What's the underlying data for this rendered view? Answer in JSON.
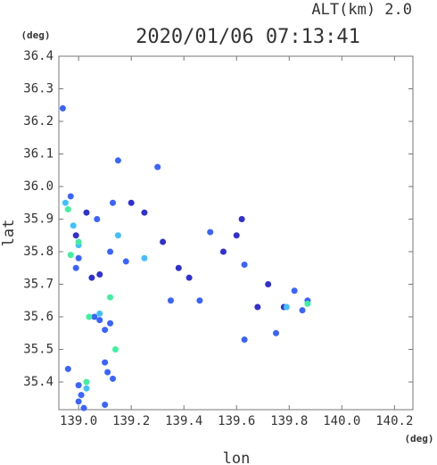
{
  "chart_data": {
    "type": "scatter",
    "title": "2020/01/06 07:13:41",
    "subtitle": "ALT(km) 2.0",
    "x_unit": "(deg)",
    "y_unit": "(deg)",
    "x_label": "lon",
    "y_label": "lat",
    "xlim": [
      138.925,
      140.27
    ],
    "ylim": [
      35.315,
      36.4
    ],
    "xticks": [
      {
        "value": 139,
        "label": "139.0"
      },
      139.2,
      139.4,
      139.6,
      139.8,
      {
        "value": 140,
        "label": "140.0"
      },
      140.2
    ],
    "yticks": [
      35.4,
      35.5,
      35.6,
      35.7,
      35.8,
      35.9,
      {
        "value": 36,
        "label": "36.0"
      },
      36.1,
      36.2,
      36.3,
      36.4
    ],
    "series": [
      {
        "color": "#3a64ff",
        "x": [
          138.94,
          138.97,
          139.0,
          138.99,
          139.06,
          139.08,
          139.1,
          139.12,
          139.1,
          139.11,
          139.13,
          138.96,
          139.0,
          139.01,
          139.0,
          139.02,
          139.1,
          139.13,
          139.07,
          139.5,
          139.63,
          139.75,
          139.82,
          139.85,
          139.87,
          139.63,
          139.46,
          139.35,
          139.18,
          139.12,
          139.15,
          139.3
        ],
        "values": [
          36.24,
          35.97,
          35.78,
          35.75,
          35.6,
          35.59,
          35.56,
          35.58,
          35.46,
          35.43,
          35.41,
          35.44,
          35.39,
          35.36,
          35.34,
          35.32,
          35.33,
          35.95,
          35.9,
          35.86,
          35.76,
          35.55,
          35.68,
          35.62,
          35.65,
          35.53,
          35.65,
          35.65,
          35.77,
          35.8,
          36.08,
          36.06
        ]
      },
      {
        "color": "#3030d0",
        "x": [
          139.2,
          139.25,
          139.32,
          139.38,
          139.42,
          139.55,
          139.6,
          139.62,
          139.72,
          139.78,
          139.68,
          139.08,
          139.05,
          139.03,
          138.99
        ],
        "values": [
          35.95,
          35.92,
          35.83,
          35.75,
          35.72,
          35.8,
          35.85,
          35.9,
          35.7,
          35.63,
          35.63,
          35.73,
          35.72,
          35.92,
          35.85
        ]
      },
      {
        "color": "#40c0ff",
        "x": [
          138.95,
          138.98,
          139.0,
          139.03,
          139.08,
          139.79,
          139.25,
          139.15
        ],
        "values": [
          35.95,
          35.88,
          35.82,
          35.38,
          35.61,
          35.63,
          35.78,
          35.85
        ]
      },
      {
        "color": "#40f0a0",
        "x": [
          138.96,
          139.0,
          139.04,
          139.12,
          138.97,
          139.87,
          139.14,
          139.03
        ],
        "values": [
          35.93,
          35.83,
          35.6,
          35.66,
          35.79,
          35.64,
          35.5,
          35.4
        ]
      }
    ]
  }
}
